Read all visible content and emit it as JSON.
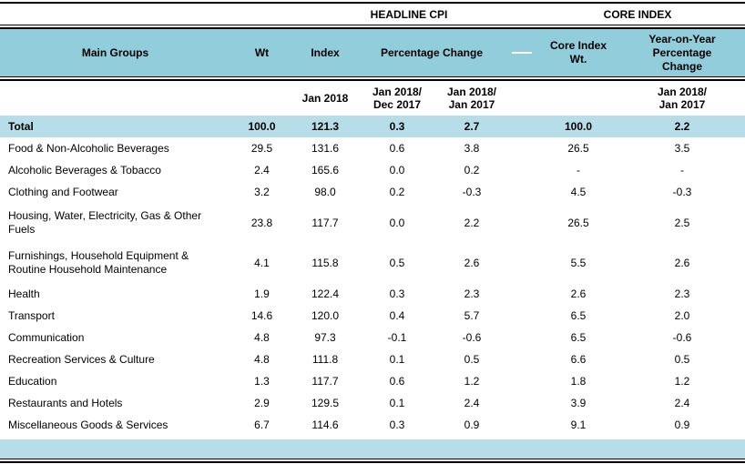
{
  "chart_data": {
    "type": "table",
    "sections": {
      "headline": "HEADLINE CPI",
      "core": "CORE INDEX"
    },
    "header": {
      "main_groups": "Main Groups",
      "wt": "Wt",
      "index": "Index",
      "percentage_change": "Percentage Change",
      "core_index_wt": "Core Index Wt.",
      "yoy_percentage_change": "Year-on-Year Percentage Change"
    },
    "subheader": {
      "index_period": "Jan 2018",
      "pc_dec_line1": "Jan 2018/",
      "pc_dec_line2": "Dec 2017",
      "pc_jan_line1": "Jan 2018/",
      "pc_jan_line2": "Jan 2017",
      "yoy_line1": "Jan 2018/",
      "yoy_line2": "Jan 2017"
    },
    "rows": [
      {
        "group": "Total",
        "wt": "100.0",
        "index": "121.3",
        "pc_dec": "0.3",
        "pc_jan": "2.7",
        "core_wt": "100.0",
        "yoy": "2.2",
        "highlight": true
      },
      {
        "group": "Food & Non-Alcoholic Beverages",
        "wt": "29.5",
        "index": "131.6",
        "pc_dec": "0.6",
        "pc_jan": "3.8",
        "core_wt": "26.5",
        "yoy": "3.5"
      },
      {
        "group": "Alcoholic Beverages & Tobacco",
        "wt": "2.4",
        "index": "165.6",
        "pc_dec": "0.0",
        "pc_jan": "0.2",
        "core_wt": "-",
        "yoy": "-"
      },
      {
        "group": "Clothing and Footwear",
        "wt": "3.2",
        "index": "98.0",
        "pc_dec": "0.2",
        "pc_jan": "-0.3",
        "core_wt": "4.5",
        "yoy": "-0.3"
      },
      {
        "group": "Housing, Water, Electricity, Gas & Other Fuels",
        "wt": "23.8",
        "index": "117.7",
        "pc_dec": "0.0",
        "pc_jan": "2.2",
        "core_wt": "26.5",
        "yoy": "2.5"
      },
      {
        "group": "Furnishings, Household Equipment & Routine Household Maintenance",
        "wt": "4.1",
        "index": "115.8",
        "pc_dec": "0.5",
        "pc_jan": "2.6",
        "core_wt": "5.5",
        "yoy": "2.6"
      },
      {
        "group": "Health",
        "wt": "1.9",
        "index": "122.4",
        "pc_dec": "0.3",
        "pc_jan": "2.3",
        "core_wt": "2.6",
        "yoy": "2.3"
      },
      {
        "group": "Transport",
        "wt": "14.6",
        "index": "120.0",
        "pc_dec": "0.4",
        "pc_jan": "5.7",
        "core_wt": "6.5",
        "yoy": "2.0"
      },
      {
        "group": "Communication",
        "wt": "4.8",
        "index": "97.3",
        "pc_dec": "-0.1",
        "pc_jan": "-0.6",
        "core_wt": "6.5",
        "yoy": "-0.6"
      },
      {
        "group": "Recreation Services & Culture",
        "wt": "4.8",
        "index": "111.8",
        "pc_dec": "0.1",
        "pc_jan": "0.5",
        "core_wt": "6.6",
        "yoy": "0.5"
      },
      {
        "group": "Education",
        "wt": "1.3",
        "index": "117.7",
        "pc_dec": "0.6",
        "pc_jan": "1.2",
        "core_wt": "1.8",
        "yoy": "1.2"
      },
      {
        "group": "Restaurants and Hotels",
        "wt": "2.9",
        "index": "129.5",
        "pc_dec": "0.1",
        "pc_jan": "2.4",
        "core_wt": "3.9",
        "yoy": "2.4"
      },
      {
        "group": "Miscellaneous Goods & Services",
        "wt": "6.7",
        "index": "114.6",
        "pc_dec": "0.3",
        "pc_jan": "0.9",
        "core_wt": "9.1",
        "yoy": "0.9"
      }
    ]
  },
  "colors": {
    "header_bg": "#92CDDC",
    "highlight_bg": "#B7DEE8",
    "rule": "#000000"
  }
}
